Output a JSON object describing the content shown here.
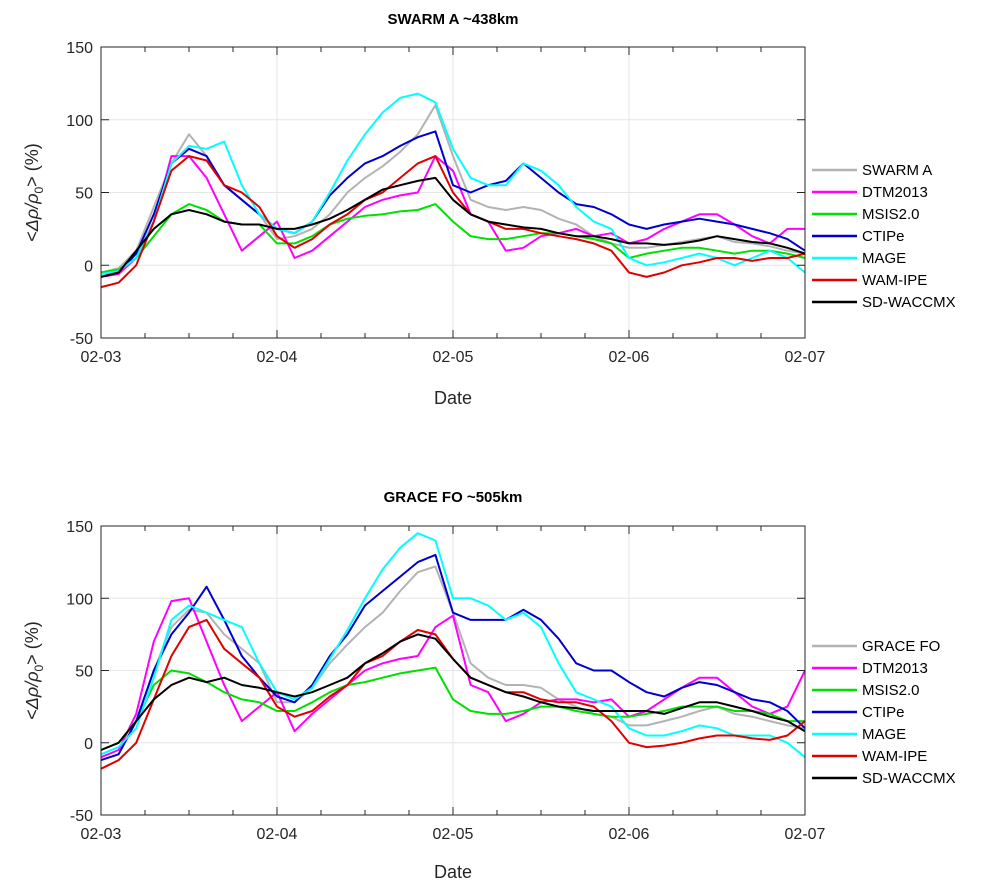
{
  "chart_data": [
    {
      "type": "line",
      "title": "SWARM A ~438km",
      "xlabel": "Date",
      "ylabel_parts": [
        "<",
        "Δρ/ρ",
        "0",
        "> (%)"
      ],
      "x_tick_labels": [
        "02-03",
        "02-04",
        "02-05",
        "02-06",
        "02-07"
      ],
      "y_tick_labels": [
        "-50",
        "0",
        "50",
        "100",
        "150"
      ],
      "xlim": [
        0,
        4
      ],
      "ylim": [
        -50,
        150
      ],
      "grid": true,
      "legend_position": "right",
      "x": [
        0,
        0.1,
        0.2,
        0.3,
        0.4,
        0.5,
        0.6,
        0.7,
        0.8,
        0.9,
        1.0,
        1.1,
        1.2,
        1.3,
        1.4,
        1.5,
        1.6,
        1.7,
        1.8,
        1.9,
        2.0,
        2.1,
        2.2,
        2.3,
        2.4,
        2.5,
        2.6,
        2.7,
        2.8,
        2.9,
        3.0,
        3.1,
        3.2,
        3.3,
        3.4,
        3.5,
        3.6,
        3.7,
        3.8,
        3.9,
        4.0
      ],
      "series": [
        {
          "name": "SWARM A",
          "color": "#b3b3b3",
          "values": [
            -5,
            -2,
            10,
            40,
            70,
            90,
            75,
            55,
            45,
            35,
            18,
            20,
            25,
            35,
            50,
            60,
            68,
            78,
            90,
            110,
            75,
            45,
            40,
            38,
            40,
            38,
            32,
            28,
            20,
            15,
            12,
            12,
            14,
            16,
            18,
            20,
            16,
            15,
            13,
            10,
            8
          ]
        },
        {
          "name": "DTM2013",
          "color": "#ff00ff",
          "values": [
            -8,
            -6,
            5,
            30,
            75,
            75,
            60,
            35,
            10,
            20,
            30,
            5,
            10,
            20,
            30,
            40,
            45,
            48,
            50,
            75,
            65,
            35,
            30,
            10,
            12,
            20,
            22,
            25,
            20,
            22,
            15,
            18,
            25,
            30,
            35,
            35,
            28,
            20,
            15,
            25,
            25
          ]
        },
        {
          "name": "MSIS2.0",
          "color": "#00e000",
          "values": [
            -5,
            -3,
            5,
            20,
            35,
            42,
            38,
            30,
            28,
            28,
            15,
            15,
            20,
            28,
            32,
            34,
            35,
            37,
            38,
            42,
            30,
            20,
            18,
            18,
            20,
            22,
            22,
            20,
            18,
            15,
            5,
            8,
            10,
            12,
            12,
            10,
            8,
            10,
            10,
            8,
            5
          ]
        },
        {
          "name": "CTIPe",
          "color": "#0000cc",
          "values": [
            -8,
            -5,
            8,
            35,
            70,
            80,
            75,
            55,
            45,
            35,
            25,
            22,
            30,
            48,
            60,
            70,
            75,
            82,
            88,
            92,
            55,
            50,
            55,
            58,
            70,
            60,
            50,
            42,
            40,
            35,
            28,
            25,
            28,
            30,
            32,
            30,
            28,
            25,
            22,
            18,
            10
          ]
        },
        {
          "name": "MAGE",
          "color": "#00ffff",
          "values": [
            -6,
            -4,
            5,
            30,
            70,
            82,
            80,
            85,
            55,
            35,
            25,
            22,
            30,
            50,
            72,
            90,
            105,
            115,
            118,
            112,
            80,
            60,
            55,
            55,
            70,
            65,
            55,
            40,
            30,
            25,
            5,
            0,
            2,
            5,
            8,
            5,
            0,
            5,
            10,
            5,
            -5
          ]
        },
        {
          "name": "WAM-IPE",
          "color": "#e00000",
          "values": [
            -15,
            -12,
            0,
            30,
            65,
            75,
            72,
            55,
            50,
            40,
            20,
            12,
            18,
            28,
            35,
            45,
            50,
            60,
            70,
            75,
            50,
            35,
            30,
            25,
            25,
            22,
            20,
            18,
            15,
            10,
            -5,
            -8,
            -5,
            0,
            2,
            5,
            5,
            3,
            5,
            5,
            8
          ]
        },
        {
          "name": "SD-WACCMX",
          "color": "#000000",
          "values": [
            -8,
            -5,
            10,
            25,
            35,
            38,
            35,
            30,
            28,
            28,
            25,
            25,
            28,
            32,
            38,
            45,
            52,
            55,
            58,
            60,
            45,
            35,
            30,
            28,
            26,
            25,
            22,
            20,
            20,
            18,
            15,
            15,
            14,
            15,
            17,
            20,
            18,
            16,
            15,
            12,
            8
          ]
        }
      ]
    },
    {
      "type": "line",
      "title": "GRACE FO ~505km",
      "xlabel": "Date",
      "ylabel_parts": [
        "<",
        "Δρ/ρ",
        "0",
        "> (%)"
      ],
      "x_tick_labels": [
        "02-03",
        "02-04",
        "02-05",
        "02-06",
        "02-07"
      ],
      "y_tick_labels": [
        "-50",
        "0",
        "50",
        "100",
        "150"
      ],
      "xlim": [
        0,
        4
      ],
      "ylim": [
        -50,
        150
      ],
      "grid": true,
      "legend_position": "right",
      "x": [
        0,
        0.1,
        0.2,
        0.3,
        0.4,
        0.5,
        0.6,
        0.7,
        0.8,
        0.9,
        1.0,
        1.1,
        1.2,
        1.3,
        1.4,
        1.5,
        1.6,
        1.7,
        1.8,
        1.9,
        2.0,
        2.1,
        2.2,
        2.3,
        2.4,
        2.5,
        2.6,
        2.7,
        2.8,
        2.9,
        3.0,
        3.1,
        3.2,
        3.3,
        3.4,
        3.5,
        3.6,
        3.7,
        3.8,
        3.9,
        4.0
      ],
      "series": [
        {
          "name": "GRACE FO",
          "color": "#b3b3b3",
          "values": [
            -5,
            0,
            15,
            50,
            80,
            92,
            90,
            75,
            65,
            55,
            28,
            28,
            38,
            55,
            68,
            80,
            90,
            105,
            118,
            122,
            90,
            55,
            45,
            40,
            40,
            38,
            30,
            25,
            20,
            18,
            12,
            12,
            15,
            18,
            22,
            25,
            20,
            18,
            15,
            12,
            10
          ]
        },
        {
          "name": "DTM2013",
          "color": "#ff00ff",
          "values": [
            -10,
            -5,
            20,
            70,
            98,
            100,
            70,
            40,
            15,
            25,
            35,
            8,
            20,
            30,
            40,
            50,
            55,
            58,
            60,
            80,
            88,
            40,
            35,
            15,
            20,
            28,
            30,
            30,
            28,
            30,
            18,
            22,
            30,
            38,
            45,
            45,
            35,
            25,
            20,
            25,
            50
          ]
        },
        {
          "name": "MSIS2.0",
          "color": "#00e000",
          "values": [
            -5,
            0,
            15,
            40,
            50,
            48,
            42,
            35,
            30,
            28,
            22,
            22,
            28,
            35,
            40,
            42,
            45,
            48,
            50,
            52,
            30,
            22,
            20,
            20,
            22,
            25,
            25,
            22,
            20,
            18,
            18,
            20,
            22,
            25,
            25,
            25,
            22,
            22,
            20,
            15,
            15
          ]
        },
        {
          "name": "CTIPe",
          "color": "#0000cc",
          "values": [
            -12,
            -8,
            15,
            50,
            75,
            90,
            108,
            85,
            60,
            45,
            32,
            28,
            40,
            60,
            75,
            95,
            105,
            115,
            125,
            130,
            90,
            85,
            85,
            85,
            92,
            85,
            72,
            55,
            50,
            50,
            42,
            35,
            32,
            38,
            42,
            40,
            35,
            30,
            28,
            22,
            10
          ]
        },
        {
          "name": "MAGE",
          "color": "#00ffff",
          "values": [
            -8,
            -3,
            10,
            45,
            85,
            95,
            90,
            85,
            80,
            55,
            35,
            30,
            38,
            58,
            78,
            100,
            120,
            135,
            145,
            140,
            100,
            100,
            95,
            85,
            90,
            80,
            55,
            35,
            30,
            25,
            10,
            5,
            5,
            8,
            12,
            10,
            5,
            5,
            5,
            0,
            -10
          ]
        },
        {
          "name": "WAM-IPE",
          "color": "#e00000",
          "values": [
            -18,
            -12,
            0,
            30,
            60,
            80,
            85,
            65,
            55,
            45,
            25,
            18,
            22,
            32,
            40,
            55,
            60,
            70,
            78,
            75,
            58,
            45,
            40,
            35,
            35,
            30,
            28,
            28,
            25,
            15,
            0,
            -3,
            -2,
            0,
            3,
            5,
            5,
            3,
            2,
            5,
            15
          ]
        },
        {
          "name": "SD-WACCMX",
          "color": "#000000",
          "values": [
            -5,
            0,
            15,
            30,
            40,
            45,
            42,
            45,
            40,
            38,
            35,
            32,
            35,
            40,
            45,
            55,
            62,
            70,
            75,
            72,
            58,
            45,
            40,
            35,
            32,
            28,
            25,
            24,
            22,
            22,
            22,
            22,
            20,
            24,
            28,
            28,
            25,
            22,
            18,
            15,
            8
          ]
        }
      ]
    }
  ]
}
